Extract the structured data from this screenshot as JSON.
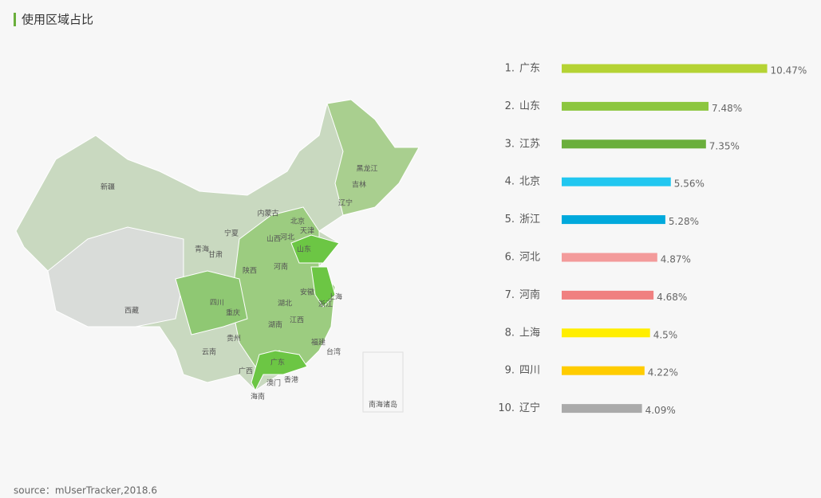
{
  "title": "使用区域占比",
  "source": "source：mUserTracker,2018.6",
  "map": {
    "labels": [
      "新疆",
      "西藏",
      "青海",
      "甘肃",
      "宁夏",
      "内蒙古",
      "黑龙江",
      "吉林",
      "辽宁",
      "北京",
      "天津",
      "河北",
      "山西",
      "山东",
      "河南",
      "陕西",
      "四川",
      "重庆",
      "湖北",
      "安徽",
      "上海",
      "浙江",
      "湖南",
      "江西",
      "福建",
      "台湾",
      "贵州",
      "云南",
      "广西",
      "广东",
      "澳门",
      "香港",
      "海南"
    ],
    "inset_label": "南海诸岛"
  },
  "chart_data": {
    "type": "bar",
    "ranks": [
      "1.",
      "2.",
      "3.",
      "4.",
      "5.",
      "6.",
      "7.",
      "8.",
      "9.",
      "10."
    ],
    "categories": [
      "广东",
      "山东",
      "江苏",
      "北京",
      "浙江",
      "河北",
      "河南",
      "上海",
      "四川",
      "辽宁"
    ],
    "values": [
      10.47,
      7.48,
      7.35,
      5.56,
      5.28,
      4.87,
      4.68,
      4.5,
      4.22,
      4.09
    ],
    "value_labels": [
      "10.47%",
      "7.48%",
      "7.35%",
      "5.56%",
      "5.28%",
      "4.87%",
      "4.68%",
      "4.5%",
      "4.22%",
      "4.09%"
    ],
    "colors": [
      "#b5d334",
      "#8cc63f",
      "#6aaf3c",
      "#22c7f0",
      "#00a9dc",
      "#f39b9b",
      "#f08080",
      "#ffee00",
      "#ffcc00",
      "#aaaaaa"
    ]
  }
}
